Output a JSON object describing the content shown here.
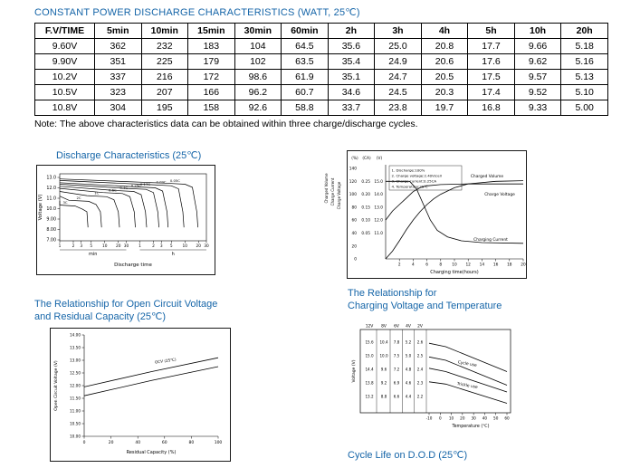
{
  "colors": {
    "accent": "#1565a8"
  },
  "page": {
    "title": "CONSTANT POWER DISCHARGE CHARACTERISTICS (WATT, 25℃)",
    "note": "Note: The above characteristics data can be obtained within three charge/discharge cycles."
  },
  "table": {
    "header": [
      "F.V/TIME",
      "5min",
      "10min",
      "15min",
      "30min",
      "60min",
      "2h",
      "3h",
      "4h",
      "5h",
      "10h",
      "20h"
    ],
    "rows": [
      [
        "9.60V",
        "362",
        "232",
        "183",
        "104",
        "64.5",
        "35.6",
        "25.0",
        "20.8",
        "17.7",
        "9.66",
        "5.18"
      ],
      [
        "9.90V",
        "351",
        "225",
        "179",
        "102",
        "63.5",
        "35.4",
        "24.9",
        "20.6",
        "17.6",
        "9.62",
        "5.16"
      ],
      [
        "10.2V",
        "337",
        "216",
        "172",
        "98.6",
        "61.9",
        "35.1",
        "24.7",
        "20.5",
        "17.5",
        "9.57",
        "5.13"
      ],
      [
        "10.5V",
        "323",
        "207",
        "166",
        "96.2",
        "60.7",
        "34.6",
        "24.5",
        "20.3",
        "17.4",
        "9.52",
        "5.10"
      ],
      [
        "10.8V",
        "304",
        "195",
        "158",
        "92.6",
        "58.8",
        "33.7",
        "23.8",
        "19.7",
        "16.8",
        "9.33",
        "5.00"
      ]
    ]
  },
  "headings": {
    "discharge": "Discharge Characteristics (25℃)",
    "ocv_line1": "The Relationship for Open Circuit Voltage",
    "ocv_line2": "and Residual Capacity (25℃)",
    "charging_line1": "The Relationship for",
    "charging_line2": "Charging Voltage and Temperature",
    "cycle_life": "Cycle Life on D.O.D (25℃)"
  },
  "chart_data": [
    {
      "id": "discharge",
      "type": "line",
      "title": "Discharge Characteristics (25℃)",
      "ylabel": "Voltage (V)",
      "xlabel": "Discharge time",
      "y_ticks": [
        "13.0",
        "12.0",
        "11.0",
        "10.0",
        "9.00",
        "8.00",
        "7.00"
      ],
      "x_min_ticks": [
        "1",
        "2",
        "3",
        "5",
        "10",
        "20",
        "30"
      ],
      "x_h_ticks": [
        "1",
        "2",
        "3",
        "5",
        "10",
        "20",
        "30"
      ],
      "x_group_labels": [
        "min",
        "h"
      ],
      "x_scale": "log",
      "series": [
        {
          "name": "3C",
          "end_min": 4,
          "plateau_v": 10.35
        },
        {
          "name": "2C",
          "end_min": 8,
          "plateau_v": 10.8
        },
        {
          "name": "1C",
          "end_min": 20,
          "plateau_v": 11.25
        },
        {
          "name": "0.6C",
          "end_min": 45,
          "plateau_v": 11.55
        },
        {
          "name": "0.4C",
          "end_min": 80,
          "plateau_v": 11.75
        },
        {
          "name": "0.25C",
          "end_min": 150,
          "plateau_v": 11.95
        },
        {
          "name": "0.17C",
          "end_min": 240,
          "plateau_v": 12.1
        },
        {
          "name": "0.09C",
          "end_min": 540,
          "plateau_v": 12.3
        },
        {
          "name": "0.05C",
          "end_min": 1100,
          "plateau_v": 12.45
        }
      ]
    },
    {
      "id": "charge-characteristics",
      "type": "line",
      "side_labels": [
        "Charged Volume",
        "Charge Current",
        "Charge Voltage"
      ],
      "unit_labels": [
        "(%)",
        "(CA)",
        "(V)"
      ],
      "pct_ticks": [
        140,
        120,
        100,
        80,
        60,
        40,
        20,
        0
      ],
      "ca_ticks": [
        0.25,
        0.2,
        0.15,
        0.1,
        0.05
      ],
      "v_ticks": [
        15.0,
        14.0,
        13.0,
        12.0,
        11.0
      ],
      "x_ticks": [
        2,
        4,
        6,
        8,
        10,
        12,
        14,
        16,
        18,
        20
      ],
      "xlabel": "Charging time(hours)",
      "legend": [
        "1. Discharge:100%",
        "2. Charge voltage:2.40V/cell",
        "3. Charge current:0.25CA",
        "4. Temperature:25℃"
      ],
      "series": [
        {
          "name": "Charged Volume",
          "unit": "%",
          "points": [
            [
              0,
              0
            ],
            [
              1,
              12
            ],
            [
              2,
              28
            ],
            [
              3,
              45
            ],
            [
              4,
              60
            ],
            [
              5,
              73
            ],
            [
              6,
              84
            ],
            [
              7,
              93
            ],
            [
              8,
              100
            ],
            [
              10,
              110
            ],
            [
              12,
              116
            ],
            [
              16,
              120
            ],
            [
              20,
              121
            ]
          ]
        },
        {
          "name": "Charge Voltage",
          "unit": "V",
          "points": [
            [
              0,
              12.0
            ],
            [
              1,
              12.7
            ],
            [
              2,
              13.2
            ],
            [
              3,
              13.7
            ],
            [
              4,
              14.2
            ],
            [
              5,
              14.5
            ],
            [
              6,
              14.65
            ],
            [
              8,
              14.75
            ],
            [
              12,
              14.8
            ],
            [
              20,
              14.8
            ]
          ]
        },
        {
          "name": "Charging Current",
          "unit": "CA",
          "points": [
            [
              0,
              0.25
            ],
            [
              3.5,
              0.25
            ],
            [
              4.5,
              0.22
            ],
            [
              5.5,
              0.16
            ],
            [
              6.5,
              0.1
            ],
            [
              7.5,
              0.06
            ],
            [
              9,
              0.035
            ],
            [
              11,
              0.02
            ],
            [
              14,
              0.013
            ],
            [
              20,
              0.01
            ]
          ]
        }
      ]
    },
    {
      "id": "ocv-residual-capacity",
      "type": "line",
      "ylabel": "Open Circuit Voltage (V)",
      "xlabel": "Residual Capacity (%)",
      "y_ticks": [
        "14.00",
        "13.50",
        "13.00",
        "12.50",
        "12.00",
        "11.50",
        "11.00",
        "10.50",
        "10.00"
      ],
      "x_ticks": [
        "0",
        "20",
        "40",
        "60",
        "80",
        "100"
      ],
      "annotation": "OCV (25℃)",
      "y_range": [
        10.0,
        14.0
      ],
      "series": [
        {
          "name": "upper",
          "points": [
            [
              0,
              11.95
            ],
            [
              50,
              12.55
            ],
            [
              100,
              13.1
            ]
          ]
        },
        {
          "name": "lower",
          "points": [
            [
              0,
              11.6
            ],
            [
              50,
              12.2
            ],
            [
              100,
              12.75
            ]
          ]
        }
      ]
    },
    {
      "id": "charging-voltage-temperature",
      "type": "line",
      "ylabel": "Voltage (V)",
      "xlabel": "Temperature (℃)",
      "top_labels": [
        "12V",
        "8V",
        "6V",
        "4V",
        "2V"
      ],
      "scale_rows": [
        [
          "15.6",
          "10.4",
          "7.8",
          "5.2",
          "2.6"
        ],
        [
          "15.0",
          "10.0",
          "7.5",
          "5.0",
          "2.5"
        ],
        [
          "14.4",
          "9.6",
          "7.2",
          "4.8",
          "2.4"
        ],
        [
          "13.8",
          "9.2",
          "6.9",
          "4.6",
          "2.3"
        ],
        [
          "13.2",
          "8.8",
          "6.6",
          "4.4",
          "2.2"
        ]
      ],
      "x_ticks": [
        "-10",
        "0",
        "10",
        "20",
        "30",
        "40",
        "50",
        "60"
      ],
      "bands": [
        {
          "name": "Cycle use",
          "upper": [
            [
              -10,
              15.55
            ],
            [
              5,
              15.4
            ],
            [
              60,
              14.3
            ]
          ],
          "lower": [
            [
              -10,
              14.95
            ],
            [
              5,
              14.8
            ],
            [
              60,
              13.7
            ]
          ]
        },
        {
          "name": "Trickle use",
          "upper": [
            [
              -10,
              14.45
            ],
            [
              5,
              14.3
            ],
            [
              60,
              13.4
            ]
          ],
          "lower": [
            [
              -10,
              13.85
            ],
            [
              5,
              13.75
            ],
            [
              60,
              12.9
            ]
          ]
        }
      ]
    }
  ]
}
